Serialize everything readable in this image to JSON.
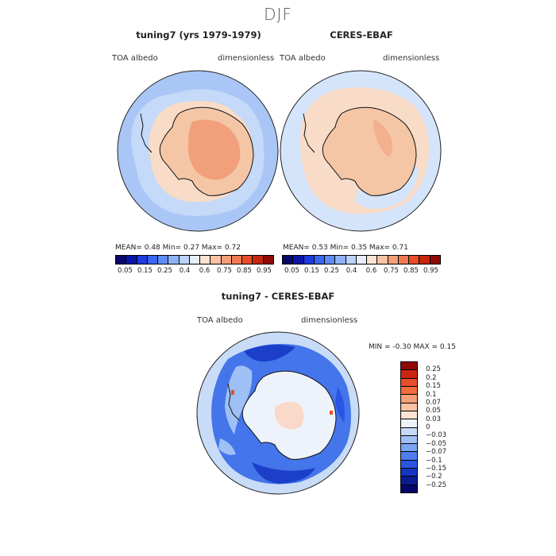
{
  "figure": {
    "title": "DJF"
  },
  "panels": {
    "left": {
      "title": "tuning7 (yrs 1979-1979)",
      "variable": "TOA albedo",
      "units": "dimensionless",
      "stats_text": "MEAN=    0.48   Min=    0.27   Max=    0.72",
      "mean": 0.48,
      "min": 0.27,
      "max": 0.72
    },
    "right": {
      "title": "CERES-EBAF",
      "variable": "TOA albedo",
      "units": "dimensionless",
      "stats_text": "MEAN=    0.53   Min=    0.35   Max=    0.71",
      "mean": 0.53,
      "min": 0.35,
      "max": 0.71
    },
    "diff": {
      "title": "tuning7 - CERES-EBAF",
      "variable": "TOA albedo",
      "units": "dimensionless",
      "stats_text": "MIN =   -0.30  MAX =    0.15",
      "min": -0.3,
      "max": 0.15
    }
  },
  "colorbar_abs": {
    "colors": [
      "#08086b",
      "#0a16a6",
      "#1f3be0",
      "#3a66f0",
      "#5e8cf5",
      "#8fb2f7",
      "#bcd3f8",
      "#e6eefa",
      "#fde3d2",
      "#f9c3a4",
      "#f59f78",
      "#f07a52",
      "#e84e2a",
      "#c8260f",
      "#8f0a05"
    ],
    "tick_labels": [
      "0.05",
      "0.15",
      "0.25",
      "0.4",
      "0.6",
      "0.75",
      "0.85",
      "0.95"
    ]
  },
  "colorbar_diff": {
    "colors": [
      "#8f0a05",
      "#c8260f",
      "#e84e2a",
      "#f26b3b",
      "#f59f78",
      "#f9c3a4",
      "#fde3d2",
      "#eef3fb",
      "#c6dbf7",
      "#9ec0f5",
      "#7aa5f2",
      "#4e7eef",
      "#2a55e4",
      "#1336c0",
      "#0a1c90",
      "#06066a"
    ],
    "tick_labels": [
      "0.25",
      "0.2",
      "0.15",
      "0.1",
      "0.07",
      "0.05",
      "0.03",
      "0",
      "−0.03",
      "−0.05",
      "−0.07",
      "−0.1",
      "−0.15",
      "−0.2",
      "−0.25"
    ]
  },
  "map_colors": {
    "ocean_left": "#a9c6f6",
    "ocean_right": "#d4e5fb",
    "ice_ring": "#f8dcc8",
    "land_left": "#f5c6a6",
    "land_left_core": "#f2a07c",
    "land_right": "#f5c6a6",
    "land_right_core": "#f2b08f",
    "diff_ocean": "#4475ea",
    "diff_ring": "#c9dcf7",
    "diff_land": "#eef3fb",
    "diff_land_patch": "#fad4c0",
    "diff_dark": "#1b3fc9"
  }
}
